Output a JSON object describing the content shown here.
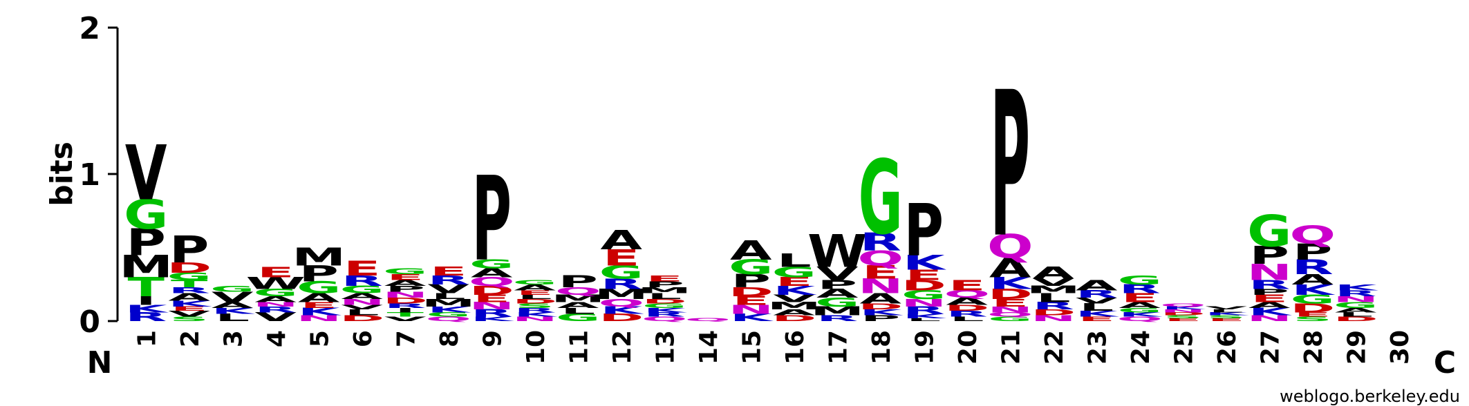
{
  "chart_data": {
    "type": "sequence-logo",
    "ylabel": "bits",
    "ylim": [
      0,
      2
    ],
    "y_ticks": [
      "0",
      "1",
      "2"
    ],
    "n_label": "N",
    "c_label": "C",
    "credit": "weblogo.berkeley.edu",
    "colors": {
      "hydrophobic": "#000000",
      "polar": "#00c000",
      "basic": "#0000cc",
      "acidic": "#cc0000",
      "amide": "#cc00cc"
    },
    "color_map": {
      "A": "hydrophobic",
      "V": "hydrophobic",
      "L": "hydrophobic",
      "I": "hydrophobic",
      "M": "hydrophobic",
      "F": "hydrophobic",
      "W": "hydrophobic",
      "P": "hydrophobic",
      "G": "polar",
      "S": "polar",
      "T": "polar",
      "Y": "polar",
      "C": "polar",
      "K": "basic",
      "R": "basic",
      "H": "basic",
      "D": "acidic",
      "E": "acidic",
      "N": "amide",
      "Q": "amide"
    },
    "positions": [
      {
        "label": "1",
        "stack": [
          [
            "R",
            0.06
          ],
          [
            "K",
            0.05
          ],
          [
            "I",
            0.06
          ],
          [
            "T",
            0.13
          ],
          [
            "M",
            0.15
          ],
          [
            "P",
            0.18
          ],
          [
            "G",
            0.2
          ],
          [
            "V",
            0.37
          ]
        ]
      },
      {
        "label": "2",
        "stack": [
          [
            "S",
            0.03
          ],
          [
            "V",
            0.04
          ],
          [
            "E",
            0.03
          ],
          [
            "K",
            0.04
          ],
          [
            "A",
            0.05
          ],
          [
            "R",
            0.04
          ],
          [
            "T",
            0.05
          ],
          [
            "G",
            0.05
          ],
          [
            "D",
            0.07
          ],
          [
            "P",
            0.18
          ]
        ]
      },
      {
        "label": "3",
        "stack": [
          [
            "L",
            0.05
          ],
          [
            "K",
            0.04
          ],
          [
            "A",
            0.04
          ],
          [
            "V",
            0.07
          ],
          [
            "G",
            0.04
          ]
        ]
      },
      {
        "label": "4",
        "stack": [
          [
            "V",
            0.06
          ],
          [
            "R",
            0.04
          ],
          [
            "N",
            0.03
          ],
          [
            "A",
            0.04
          ],
          [
            "G",
            0.05
          ],
          [
            "W",
            0.08
          ],
          [
            "E",
            0.07
          ]
        ]
      },
      {
        "label": "5",
        "stack": [
          [
            "N",
            0.04
          ],
          [
            "K",
            0.05
          ],
          [
            "E",
            0.04
          ],
          [
            "A",
            0.06
          ],
          [
            "G",
            0.08
          ],
          [
            "P",
            0.11
          ],
          [
            "M",
            0.12
          ]
        ]
      },
      {
        "label": "6",
        "stack": [
          [
            "D",
            0.04
          ],
          [
            "L",
            0.04
          ],
          [
            "V",
            0.03
          ],
          [
            "N",
            0.04
          ],
          [
            "A",
            0.04
          ],
          [
            "G",
            0.05
          ],
          [
            "R",
            0.07
          ],
          [
            "E",
            0.1
          ]
        ]
      },
      {
        "label": "7",
        "stack": [
          [
            "V",
            0.03
          ],
          [
            "T",
            0.03
          ],
          [
            "I",
            0.03
          ],
          [
            "R",
            0.03
          ],
          [
            "D",
            0.04
          ],
          [
            "N",
            0.04
          ],
          [
            "P",
            0.04
          ],
          [
            "A",
            0.04
          ],
          [
            "E",
            0.04
          ],
          [
            "G",
            0.04
          ]
        ]
      },
      {
        "label": "8",
        "stack": [
          [
            "Q",
            0.03
          ],
          [
            "G",
            0.03
          ],
          [
            "K",
            0.04
          ],
          [
            "M",
            0.05
          ],
          [
            "L",
            0.04
          ],
          [
            "V",
            0.06
          ],
          [
            "R",
            0.06
          ],
          [
            "E",
            0.06
          ]
        ]
      },
      {
        "label": "9",
        "stack": [
          [
            "K",
            0.03
          ],
          [
            "R",
            0.05
          ],
          [
            "N",
            0.05
          ],
          [
            "E",
            0.05
          ],
          [
            "D",
            0.06
          ],
          [
            "Q",
            0.06
          ],
          [
            "A",
            0.06
          ],
          [
            "G",
            0.06
          ],
          [
            "P",
            0.57
          ]
        ]
      },
      {
        "label": "10",
        "stack": [
          [
            "N",
            0.03
          ],
          [
            "K",
            0.03
          ],
          [
            "R",
            0.03
          ],
          [
            "S",
            0.03
          ],
          [
            "D",
            0.03
          ],
          [
            "L",
            0.03
          ],
          [
            "E",
            0.03
          ],
          [
            "A",
            0.04
          ],
          [
            "G",
            0.03
          ]
        ]
      },
      {
        "label": "11",
        "stack": [
          [
            "G",
            0.05
          ],
          [
            "L",
            0.04
          ],
          [
            "A",
            0.04
          ],
          [
            "M",
            0.05
          ],
          [
            "Q",
            0.05
          ],
          [
            "P",
            0.08
          ]
        ]
      },
      {
        "label": "12",
        "stack": [
          [
            "D",
            0.05
          ],
          [
            "K",
            0.05
          ],
          [
            "Q",
            0.05
          ],
          [
            "M",
            0.07
          ],
          [
            "R",
            0.07
          ],
          [
            "G",
            0.09
          ],
          [
            "E",
            0.11
          ],
          [
            "A",
            0.13
          ]
        ]
      },
      {
        "label": "13",
        "stack": [
          [
            "Q",
            0.03
          ],
          [
            "R",
            0.03
          ],
          [
            "K",
            0.03
          ],
          [
            "G",
            0.03
          ],
          [
            "D",
            0.03
          ],
          [
            "L",
            0.04
          ],
          [
            "M",
            0.04
          ],
          [
            "P",
            0.04
          ],
          [
            "E",
            0.04
          ]
        ]
      },
      {
        "label": "14",
        "stack": [
          [
            "Q",
            0.02
          ]
        ]
      },
      {
        "label": "15",
        "stack": [
          [
            "K",
            0.05
          ],
          [
            "N",
            0.06
          ],
          [
            "E",
            0.06
          ],
          [
            "D",
            0.06
          ],
          [
            "P",
            0.09
          ],
          [
            "G",
            0.1
          ],
          [
            "A",
            0.13
          ]
        ]
      },
      {
        "label": "16",
        "stack": [
          [
            "D",
            0.04
          ],
          [
            "A",
            0.04
          ],
          [
            "M",
            0.05
          ],
          [
            "V",
            0.05
          ],
          [
            "K",
            0.06
          ],
          [
            "E",
            0.06
          ],
          [
            "G",
            0.07
          ],
          [
            "L",
            0.09
          ]
        ]
      },
      {
        "label": "17",
        "stack": [
          [
            "R",
            0.04
          ],
          [
            "M",
            0.06
          ],
          [
            "G",
            0.06
          ],
          [
            "A",
            0.06
          ],
          [
            "P",
            0.06
          ],
          [
            "V",
            0.09
          ],
          [
            "W",
            0.22
          ]
        ]
      },
      {
        "label": "18",
        "stack": [
          [
            "P",
            0.04
          ],
          [
            "K",
            0.04
          ],
          [
            "D",
            0.04
          ],
          [
            "A",
            0.07
          ],
          [
            "N",
            0.1
          ],
          [
            "E",
            0.09
          ],
          [
            "Q",
            0.1
          ],
          [
            "R",
            0.12
          ],
          [
            "G",
            0.5
          ]
        ]
      },
      {
        "label": "19",
        "stack": [
          [
            "L",
            0.02
          ],
          [
            "K",
            0.03
          ],
          [
            "R",
            0.05
          ],
          [
            "N",
            0.05
          ],
          [
            "G",
            0.06
          ],
          [
            "D",
            0.07
          ],
          [
            "E",
            0.07
          ],
          [
            "K",
            0.1
          ],
          [
            "P",
            0.35
          ]
        ]
      },
      {
        "label": "20",
        "stack": [
          [
            "L",
            0.03
          ],
          [
            "R",
            0.04
          ],
          [
            "D",
            0.04
          ],
          [
            "A",
            0.05
          ],
          [
            "Q",
            0.05
          ],
          [
            "E",
            0.07
          ]
        ]
      },
      {
        "label": "21",
        "stack": [
          [
            "G",
            0.03
          ],
          [
            "Q",
            0.03
          ],
          [
            "N",
            0.04
          ],
          [
            "E",
            0.05
          ],
          [
            "D",
            0.07
          ],
          [
            "K",
            0.08
          ],
          [
            "A",
            0.13
          ],
          [
            "Q",
            0.16
          ],
          [
            "P",
            0.98
          ]
        ]
      },
      {
        "label": "22",
        "stack": [
          [
            "N",
            0.04
          ],
          [
            "D",
            0.04
          ],
          [
            "R",
            0.05
          ],
          [
            "L",
            0.06
          ],
          [
            "M",
            0.05
          ],
          [
            "V",
            0.05
          ],
          [
            "A",
            0.08
          ]
        ]
      },
      {
        "label": "23",
        "stack": [
          [
            "E",
            0.03
          ],
          [
            "K",
            0.04
          ],
          [
            "L",
            0.05
          ],
          [
            "V",
            0.04
          ],
          [
            "R",
            0.05
          ],
          [
            "A",
            0.07
          ]
        ]
      },
      {
        "label": "24",
        "stack": [
          [
            "Q",
            0.03
          ],
          [
            "K",
            0.03
          ],
          [
            "G",
            0.03
          ],
          [
            "A",
            0.04
          ],
          [
            "E",
            0.06
          ],
          [
            "R",
            0.06
          ],
          [
            "G",
            0.06
          ]
        ]
      },
      {
        "label": "25",
        "stack": [
          [
            "E",
            0.02
          ],
          [
            "S",
            0.02
          ],
          [
            "D",
            0.02
          ],
          [
            "N",
            0.02
          ],
          [
            "K",
            0.02
          ],
          [
            "Q",
            0.02
          ]
        ]
      },
      {
        "label": "26",
        "stack": [
          [
            "E",
            0.02
          ],
          [
            "S",
            0.02
          ],
          [
            "K",
            0.02
          ],
          [
            "L",
            0.02
          ],
          [
            "V",
            0.02
          ]
        ]
      },
      {
        "label": "27",
        "stack": [
          [
            "N",
            0.04
          ],
          [
            "K",
            0.05
          ],
          [
            "A",
            0.04
          ],
          [
            "E",
            0.05
          ],
          [
            "P",
            0.04
          ],
          [
            "R",
            0.06
          ],
          [
            "N",
            0.11
          ],
          [
            "P",
            0.12
          ],
          [
            "G",
            0.21
          ]
        ]
      },
      {
        "label": "28",
        "stack": [
          [
            "S",
            0.03
          ],
          [
            "E",
            0.03
          ],
          [
            "D",
            0.06
          ],
          [
            "G",
            0.06
          ],
          [
            "K",
            0.07
          ],
          [
            "A",
            0.07
          ],
          [
            "R",
            0.1
          ],
          [
            "P",
            0.11
          ],
          [
            "Q",
            0.12
          ]
        ]
      },
      {
        "label": "29",
        "stack": [
          [
            "D",
            0.03
          ],
          [
            "L",
            0.03
          ],
          [
            "A",
            0.03
          ],
          [
            "G",
            0.04
          ],
          [
            "N",
            0.04
          ],
          [
            "R",
            0.04
          ],
          [
            "K",
            0.04
          ]
        ]
      },
      {
        "label": "30",
        "stack": []
      }
    ]
  }
}
